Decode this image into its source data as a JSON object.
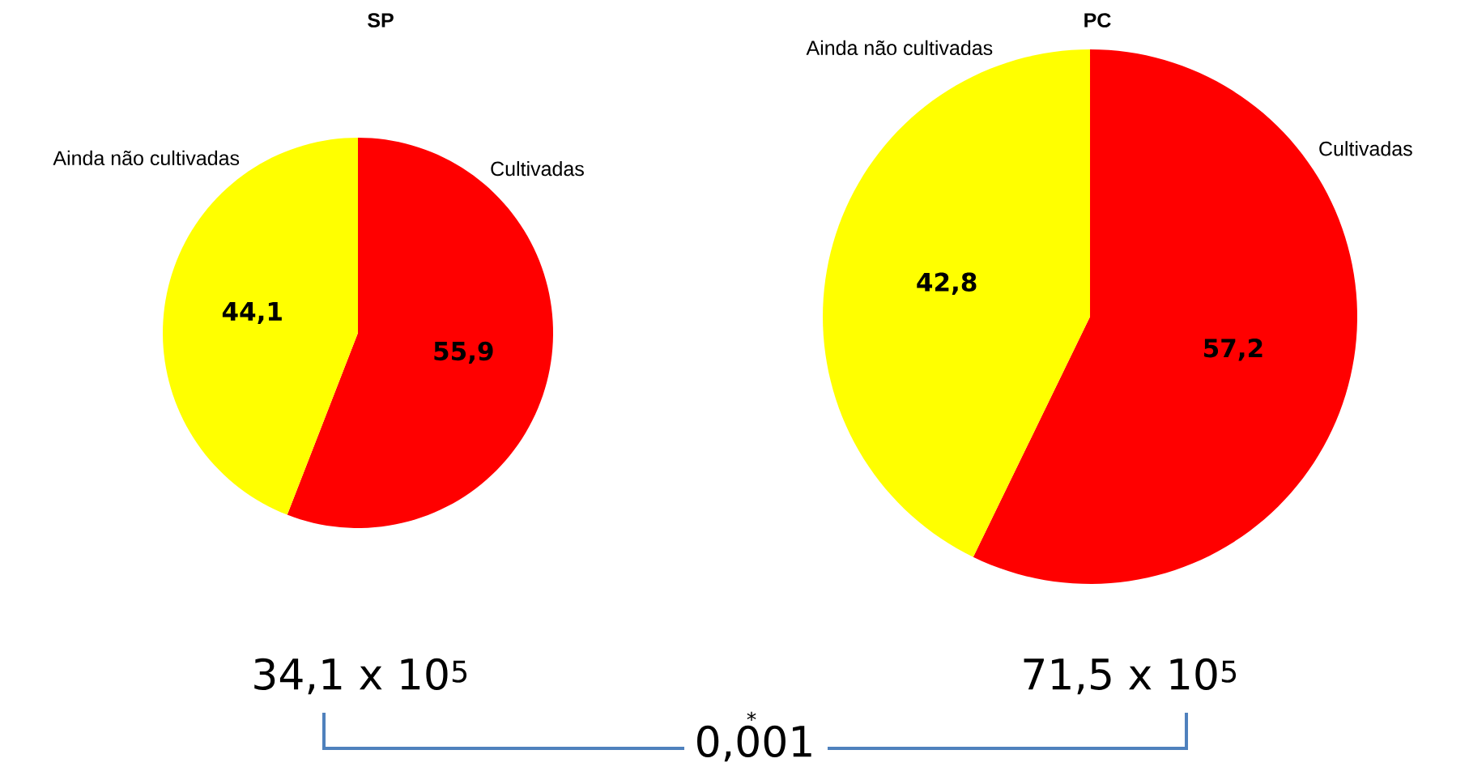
{
  "chart_data": [
    {
      "type": "pie",
      "title": "SP",
      "categories": [
        "Cultivadas",
        "Ainda não cultivadas"
      ],
      "values": [
        55.9,
        44.1
      ],
      "colors": [
        "#ff0000",
        "#ffff00"
      ],
      "value_labels": [
        "55,9",
        "44,1"
      ],
      "annotations": [
        "34,1 x 10$^{5}$"
      ]
    },
    {
      "type": "pie",
      "title": "PC",
      "categories": [
        "Cultivadas",
        "Ainda não cultivadas"
      ],
      "values": [
        57.2,
        42.8
      ],
      "colors": [
        "#ff0000",
        "#ffff00"
      ],
      "value_labels": [
        "57,2",
        "42,8"
      ],
      "annotations": [
        "71,5 x 10$^{5}$",
        "*",
        "0,001"
      ]
    }
  ]
}
